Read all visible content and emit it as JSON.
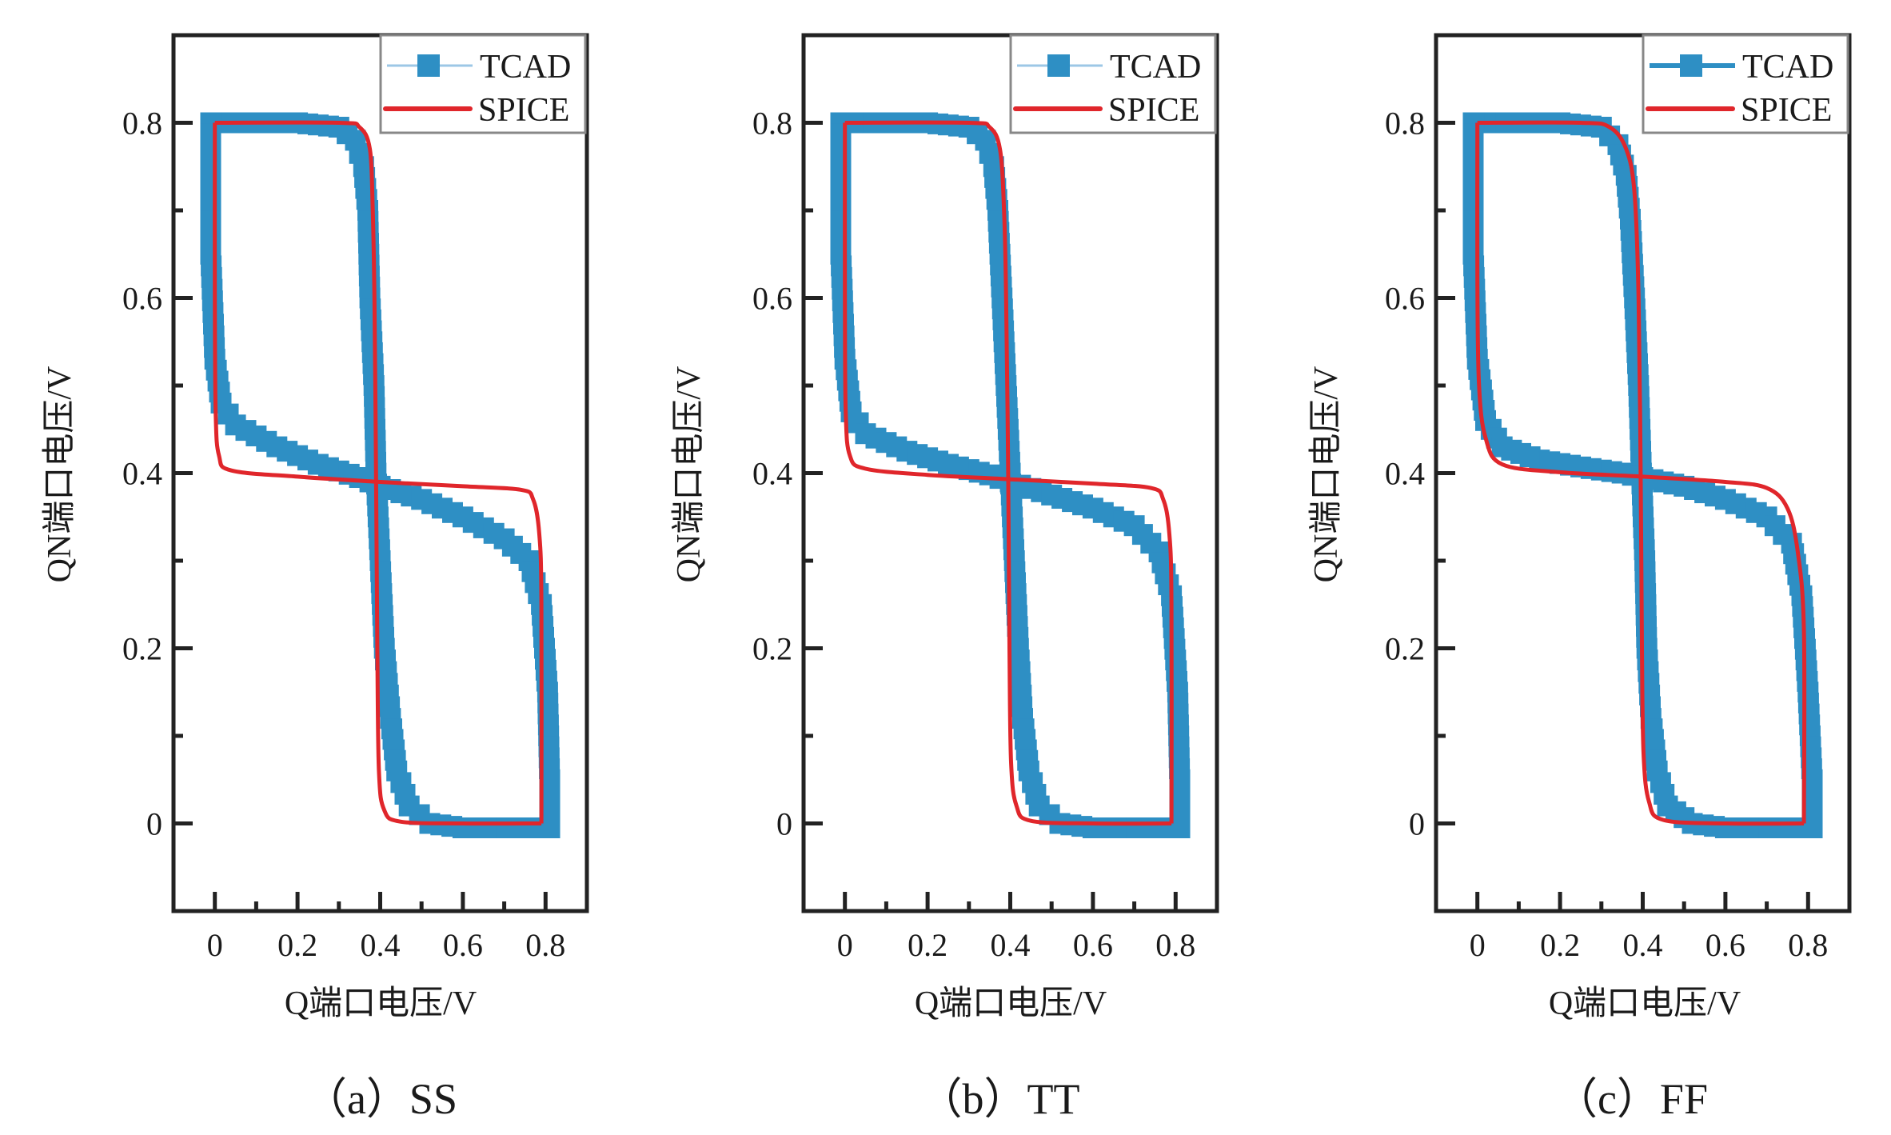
{
  "figure": {
    "panels_count": 3
  },
  "colors": {
    "tcad": "#2E8FC4",
    "tcad_line": "#9CC7E6",
    "spice": "#E0262B",
    "axis": "#222222",
    "legend_border": "#888888"
  },
  "chart_data": [
    {
      "type": "line",
      "caption": "（a）SS",
      "title": "",
      "xlabel": "Q端口电压/V",
      "ylabel": "QN端口电压/V",
      "xlim": [
        -0.1,
        0.9
      ],
      "ylim": [
        -0.1,
        0.9
      ],
      "xticks": [
        "0",
        "0.2",
        "0.4",
        "0.6",
        "0.8"
      ],
      "xtick_values": [
        0,
        0.2,
        0.4,
        0.6,
        0.8
      ],
      "xminor": [
        0.1,
        0.3,
        0.5,
        0.7
      ],
      "yticks": [
        "0",
        "0.2",
        "0.4",
        "0.6",
        "0.8"
      ],
      "ytick_values": [
        0,
        0.2,
        0.4,
        0.6,
        0.8
      ],
      "yminor": [
        0.1,
        0.3,
        0.5,
        0.7
      ],
      "grid": false,
      "legend": {
        "position": "top-right",
        "entries": [
          "TCAD",
          "SPICE"
        ]
      },
      "series": [
        {
          "name": "TCAD",
          "style": "square-markers",
          "curves": [
            [
              [
                -0.01,
                0.8
              ],
              [
                0.2,
                0.8
              ],
              [
                0.3,
                0.795
              ],
              [
                0.34,
                0.78
              ],
              [
                0.36,
                0.75
              ],
              [
                0.37,
                0.7
              ],
              [
                0.375,
                0.6
              ],
              [
                0.385,
                0.5
              ],
              [
                0.39,
                0.4
              ],
              [
                0.4,
                0.3
              ],
              [
                0.41,
                0.2
              ],
              [
                0.425,
                0.12
              ],
              [
                0.44,
                0.06
              ],
              [
                0.47,
                0.02
              ],
              [
                0.52,
                0.0
              ],
              [
                0.6,
                -0.005
              ],
              [
                0.81,
                -0.005
              ]
            ],
            [
              [
                -0.01,
                0.8
              ],
              [
                -0.01,
                0.65
              ],
              [
                0.0,
                0.53
              ],
              [
                0.015,
                0.48
              ],
              [
                0.05,
                0.455
              ],
              [
                0.15,
                0.43
              ],
              [
                0.25,
                0.41
              ],
              [
                0.35,
                0.395
              ],
              [
                0.4,
                0.385
              ],
              [
                0.5,
                0.37
              ],
              [
                0.6,
                0.35
              ],
              [
                0.7,
                0.325
              ],
              [
                0.76,
                0.3
              ],
              [
                0.79,
                0.25
              ],
              [
                0.805,
                0.15
              ],
              [
                0.81,
                0.05
              ],
              [
                0.81,
                -0.005
              ]
            ]
          ]
        },
        {
          "name": "SPICE",
          "style": "solid-line",
          "curves": [
            [
              [
                0.0,
                0.8
              ],
              [
                0.3,
                0.8
              ],
              [
                0.35,
                0.795
              ],
              [
                0.375,
                0.77
              ],
              [
                0.382,
                0.7
              ],
              [
                0.386,
                0.6
              ],
              [
                0.39,
                0.4
              ],
              [
                0.393,
                0.2
              ],
              [
                0.397,
                0.06
              ],
              [
                0.41,
                0.015
              ],
              [
                0.45,
                0.002
              ],
              [
                0.6,
                0.0
              ],
              [
                0.79,
                0.0
              ]
            ],
            [
              [
                0.0,
                0.8
              ],
              [
                0.0,
                0.6
              ],
              [
                0.002,
                0.47
              ],
              [
                0.01,
                0.42
              ],
              [
                0.04,
                0.403
              ],
              [
                0.2,
                0.396
              ],
              [
                0.4,
                0.39
              ],
              [
                0.6,
                0.385
              ],
              [
                0.74,
                0.381
              ],
              [
                0.77,
                0.37
              ],
              [
                0.785,
                0.33
              ],
              [
                0.79,
                0.25
              ],
              [
                0.79,
                0.0
              ]
            ]
          ]
        }
      ]
    },
    {
      "type": "line",
      "caption": "（b）TT",
      "title": "",
      "xlabel": "Q端口电压/V",
      "ylabel": "QN端口电压/V",
      "xlim": [
        -0.1,
        0.9
      ],
      "ylim": [
        -0.1,
        0.9
      ],
      "xticks": [
        "0",
        "0.2",
        "0.4",
        "0.6",
        "0.8"
      ],
      "xtick_values": [
        0,
        0.2,
        0.4,
        0.6,
        0.8
      ],
      "xminor": [
        0.1,
        0.3,
        0.5,
        0.7
      ],
      "yticks": [
        "0",
        "0.2",
        "0.4",
        "0.6",
        "0.8"
      ],
      "ytick_values": [
        0,
        0.2,
        0.4,
        0.6,
        0.8
      ],
      "yminor": [
        0.1,
        0.3,
        0.5,
        0.7
      ],
      "grid": false,
      "legend": {
        "position": "top-right",
        "entries": [
          "TCAD",
          "SPICE"
        ]
      },
      "series": [
        {
          "name": "TCAD",
          "style": "square-markers",
          "curves": [
            [
              [
                -0.01,
                0.8
              ],
              [
                0.2,
                0.8
              ],
              [
                0.3,
                0.795
              ],
              [
                0.34,
                0.78
              ],
              [
                0.36,
                0.75
              ],
              [
                0.37,
                0.7
              ],
              [
                0.38,
                0.6
              ],
              [
                0.39,
                0.5
              ],
              [
                0.4,
                0.4
              ],
              [
                0.41,
                0.3
              ],
              [
                0.42,
                0.2
              ],
              [
                0.43,
                0.12
              ],
              [
                0.445,
                0.06
              ],
              [
                0.47,
                0.02
              ],
              [
                0.52,
                0.0
              ],
              [
                0.6,
                -0.005
              ],
              [
                0.81,
                -0.005
              ]
            ],
            [
              [
                -0.01,
                0.8
              ],
              [
                -0.01,
                0.65
              ],
              [
                0.0,
                0.53
              ],
              [
                0.015,
                0.47
              ],
              [
                0.05,
                0.445
              ],
              [
                0.15,
                0.425
              ],
              [
                0.25,
                0.41
              ],
              [
                0.35,
                0.398
              ],
              [
                0.4,
                0.39
              ],
              [
                0.5,
                0.375
              ],
              [
                0.6,
                0.36
              ],
              [
                0.7,
                0.34
              ],
              [
                0.76,
                0.31
              ],
              [
                0.79,
                0.26
              ],
              [
                0.805,
                0.15
              ],
              [
                0.81,
                0.05
              ],
              [
                0.81,
                -0.005
              ]
            ]
          ]
        },
        {
          "name": "SPICE",
          "style": "solid-line",
          "curves": [
            [
              [
                0.0,
                0.8
              ],
              [
                0.3,
                0.8
              ],
              [
                0.35,
                0.795
              ],
              [
                0.375,
                0.77
              ],
              [
                0.385,
                0.7
              ],
              [
                0.39,
                0.6
              ],
              [
                0.395,
                0.4
              ],
              [
                0.398,
                0.2
              ],
              [
                0.402,
                0.07
              ],
              [
                0.415,
                0.02
              ],
              [
                0.45,
                0.003
              ],
              [
                0.6,
                0.0
              ],
              [
                0.79,
                0.0
              ]
            ],
            [
              [
                0.0,
                0.8
              ],
              [
                0.0,
                0.6
              ],
              [
                0.002,
                0.47
              ],
              [
                0.012,
                0.42
              ],
              [
                0.05,
                0.405
              ],
              [
                0.2,
                0.398
              ],
              [
                0.4,
                0.393
              ],
              [
                0.6,
                0.388
              ],
              [
                0.74,
                0.383
              ],
              [
                0.77,
                0.37
              ],
              [
                0.785,
                0.33
              ],
              [
                0.79,
                0.25
              ],
              [
                0.79,
                0.0
              ]
            ]
          ]
        }
      ]
    },
    {
      "type": "line",
      "caption": "（c）FF",
      "title": "",
      "xlabel": "Q端口电压/V",
      "ylabel": "QN端口电压/V",
      "xlim": [
        -0.1,
        0.9
      ],
      "ylim": [
        -0.1,
        0.9
      ],
      "xticks": [
        "0",
        "0.2",
        "0.4",
        "0.6",
        "0.8"
      ],
      "xtick_values": [
        0,
        0.2,
        0.4,
        0.6,
        0.8
      ],
      "xminor": [
        0.1,
        0.3,
        0.5,
        0.7
      ],
      "yticks": [
        "0",
        "0.2",
        "0.4",
        "0.6",
        "0.8"
      ],
      "ytick_values": [
        0,
        0.2,
        0.4,
        0.6,
        0.8
      ],
      "yminor": [
        0.1,
        0.3,
        0.5,
        0.7
      ],
      "grid": false,
      "legend": {
        "position": "top-right",
        "entries": [
          "TCAD",
          "SPICE"
        ]
      },
      "series": [
        {
          "name": "TCAD",
          "style": "square-markers",
          "curves": [
            [
              [
                -0.01,
                0.8
              ],
              [
                0.2,
                0.8
              ],
              [
                0.3,
                0.795
              ],
              [
                0.34,
                0.775
              ],
              [
                0.36,
                0.74
              ],
              [
                0.37,
                0.69
              ],
              [
                0.38,
                0.6
              ],
              [
                0.39,
                0.5
              ],
              [
                0.397,
                0.4
              ],
              [
                0.405,
                0.3
              ],
              [
                0.41,
                0.2
              ],
              [
                0.42,
                0.12
              ],
              [
                0.435,
                0.06
              ],
              [
                0.46,
                0.02
              ],
              [
                0.52,
                0.0
              ],
              [
                0.6,
                -0.005
              ],
              [
                0.81,
                -0.005
              ]
            ],
            [
              [
                -0.01,
                0.8
              ],
              [
                -0.01,
                0.65
              ],
              [
                0.0,
                0.53
              ],
              [
                0.02,
                0.46
              ],
              [
                0.06,
                0.43
              ],
              [
                0.15,
                0.415
              ],
              [
                0.25,
                0.407
              ],
              [
                0.35,
                0.4
              ],
              [
                0.4,
                0.395
              ],
              [
                0.5,
                0.385
              ],
              [
                0.6,
                0.37
              ],
              [
                0.7,
                0.35
              ],
              [
                0.76,
                0.32
              ],
              [
                0.785,
                0.26
              ],
              [
                0.8,
                0.15
              ],
              [
                0.81,
                0.05
              ],
              [
                0.81,
                -0.005
              ]
            ]
          ]
        },
        {
          "name": "SPICE",
          "style": "solid-line",
          "curves": [
            [
              [
                0.0,
                0.8
              ],
              [
                0.25,
                0.8
              ],
              [
                0.32,
                0.795
              ],
              [
                0.36,
                0.77
              ],
              [
                0.38,
                0.72
              ],
              [
                0.39,
                0.6
              ],
              [
                0.395,
                0.4
              ],
              [
                0.398,
                0.2
              ],
              [
                0.402,
                0.08
              ],
              [
                0.415,
                0.025
              ],
              [
                0.45,
                0.004
              ],
              [
                0.6,
                0.0
              ],
              [
                0.79,
                0.0
              ]
            ],
            [
              [
                0.0,
                0.8
              ],
              [
                0.0,
                0.62
              ],
              [
                0.004,
                0.5
              ],
              [
                0.02,
                0.44
              ],
              [
                0.06,
                0.41
              ],
              [
                0.2,
                0.401
              ],
              [
                0.4,
                0.396
              ],
              [
                0.6,
                0.39
              ],
              [
                0.7,
                0.383
              ],
              [
                0.75,
                0.36
              ],
              [
                0.775,
                0.31
              ],
              [
                0.79,
                0.22
              ],
              [
                0.79,
                0.0
              ]
            ]
          ]
        }
      ]
    }
  ]
}
